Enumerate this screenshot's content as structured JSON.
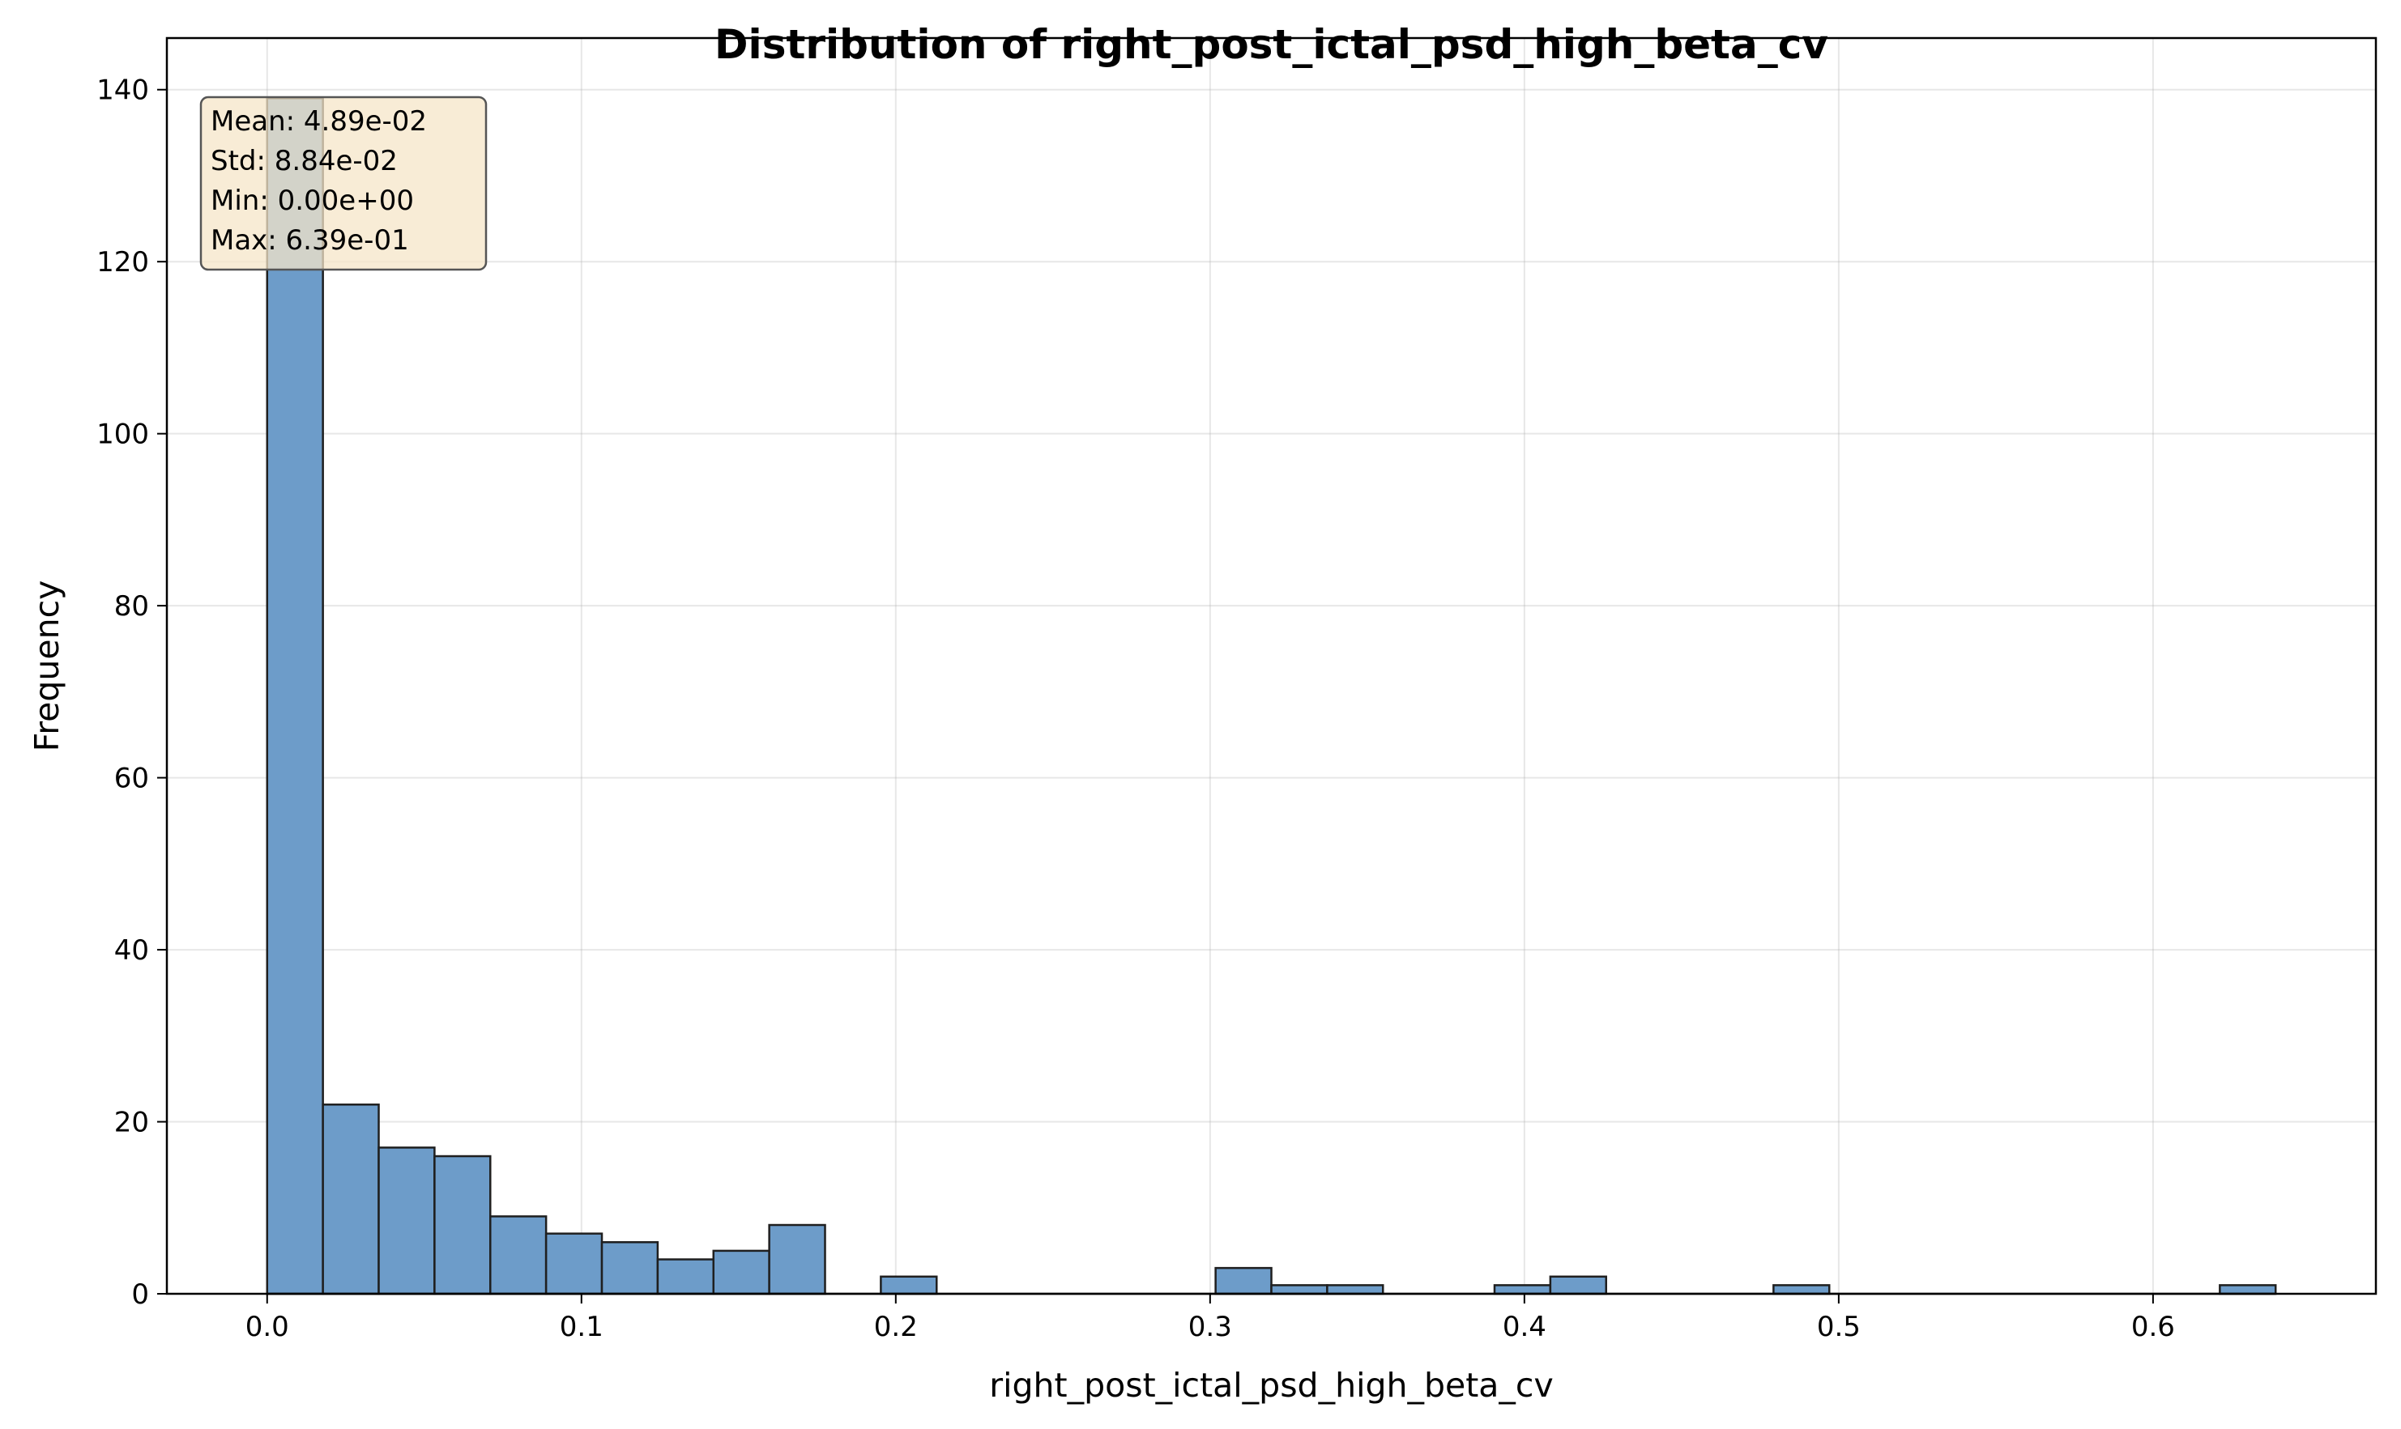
{
  "chart_data": {
    "type": "bar",
    "subtype": "histogram",
    "title": "Distribution of right_post_ictal_psd_high_beta_cv",
    "xlabel": "right_post_ictal_psd_high_beta_cv",
    "ylabel": "Frequency",
    "xlim": [
      -0.0319,
      0.6709
    ],
    "ylim": [
      0,
      146
    ],
    "xticks": [
      0.0,
      0.1,
      0.2,
      0.3,
      0.4,
      0.5,
      0.6
    ],
    "xtick_labels": [
      "0.0",
      "0.1",
      "0.2",
      "0.3",
      "0.4",
      "0.5",
      "0.6"
    ],
    "yticks": [
      0,
      20,
      40,
      60,
      80,
      100,
      120,
      140
    ],
    "ytick_labels": [
      "0",
      "20",
      "40",
      "60",
      "80",
      "100",
      "120",
      "140"
    ],
    "grid": true,
    "bin_start": 0.0,
    "bin_width": 0.01775,
    "counts": [
      139,
      22,
      17,
      16,
      9,
      7,
      6,
      4,
      5,
      8,
      0,
      2,
      0,
      0,
      0,
      0,
      0,
      3,
      1,
      1,
      0,
      0,
      1,
      2,
      0,
      0,
      0,
      1,
      0,
      0,
      0,
      0,
      0,
      0,
      0,
      1
    ],
    "bar_color": "#6d9cc9",
    "edge_color": "#1f1f1f",
    "stats_box": {
      "lines": [
        "Mean: 4.89e-02",
        "Std: 8.84e-02",
        "Min: 0.00e+00",
        "Max: 6.39e-01"
      ],
      "position": "top-left",
      "face_color": "#f5e6c8",
      "edge_color": "#555555"
    }
  }
}
